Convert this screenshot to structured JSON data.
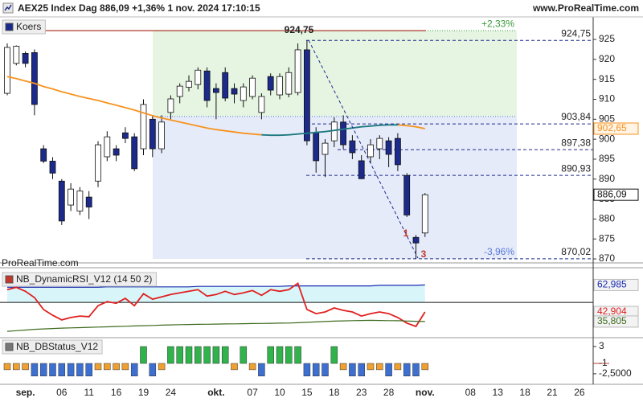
{
  "header": {
    "title": "AEX25 Index Dag 886,09 +1,36% 1 nov. 2024 17:10:15",
    "site": "www.ProRealTime.com"
  },
  "watermark": "ProRealTime.com",
  "chart_data": [
    {
      "type": "candlestick",
      "legend": "Koers",
      "ylim": [
        869,
        930.45
      ],
      "yticks": [
        870,
        875,
        880,
        885,
        890,
        895,
        900,
        905,
        910,
        915,
        920,
        925
      ],
      "up_color": "#ffffff",
      "down_color": "#1c2a8c",
      "open": [
        911.5,
        919,
        921.5,
        921.7,
        897.6,
        894.5,
        889.5,
        883.5,
        882,
        885.5,
        889.5,
        895.6,
        897.6,
        901.6,
        900.6,
        897.6,
        905,
        897.6,
        906.7,
        910.7,
        913,
        913.7,
        917.1,
        912.7,
        916.7,
        912.7,
        909.7,
        910.7,
        906.7,
        915.7,
        911.1,
        911.3,
        911.7,
        922.4,
        901.6,
        896.2,
        899.6,
        904.3,
        899.6,
        894.6,
        895.6,
        897.6,
        899.6,
        900.2,
        890.9,
        875.4,
        876.5
      ],
      "high": [
        924,
        923.5,
        922,
        922.5,
        898.5,
        895.5,
        890,
        889,
        888,
        887,
        899.5,
        902,
        898.5,
        903,
        901.5,
        910,
        906,
        906,
        911,
        914,
        916,
        918,
        918,
        914,
        918,
        914,
        914,
        916,
        911.5,
        916.5,
        916.5,
        918,
        924,
        924.75,
        903,
        900,
        905.5,
        906,
        901,
        896,
        900,
        901,
        900.5,
        901.5,
        891.5,
        876,
        886.5
      ],
      "low": [
        911,
        918.5,
        918,
        906,
        894,
        890,
        878.5,
        882,
        881,
        880,
        888,
        894.5,
        894.5,
        899,
        892,
        896,
        895.5,
        896.5,
        905,
        909,
        912,
        912.5,
        908,
        905,
        909.5,
        909,
        908,
        910,
        905,
        911,
        910,
        910.5,
        911,
        898.5,
        891.6,
        890.5,
        898,
        897.5,
        895,
        890,
        894,
        895,
        893,
        892,
        880.5,
        870.02,
        875.5
      ],
      "close": [
        923,
        923.3,
        919,
        908.7,
        894.5,
        891.5,
        879.5,
        887.5,
        887,
        883,
        898.6,
        900.6,
        896,
        900.2,
        892.6,
        908.7,
        897.6,
        904.3,
        910.1,
        913.3,
        914.5,
        917.3,
        909.7,
        911.7,
        910.3,
        911.3,
        913.1,
        915.3,
        910.7,
        912.3,
        915.7,
        916.7,
        922.4,
        899.6,
        894.6,
        899,
        904.3,
        898.6,
        896.6,
        890.1,
        898.6,
        900.2,
        896.2,
        893.6,
        881,
        874,
        886.09
      ],
      "last_label": "886,09",
      "lines": [
        {
          "color": "#f7931e",
          "values": [
            915.7,
            915.2,
            914.6,
            914.0,
            913.2,
            912.6,
            911.9,
            911.3,
            910.7,
            910.2,
            909.7,
            909.1,
            908.5,
            907.9,
            907.3,
            906.6,
            905.9,
            905.3,
            904.8,
            904.3,
            903.8,
            903.3,
            902.8,
            902.4,
            902.1,
            901.8,
            901.5,
            901.3,
            901.1,
            null,
            null,
            null,
            null,
            null,
            null,
            null,
            null,
            null,
            null,
            null,
            null,
            null,
            null,
            903.6,
            903.4,
            903.1,
            902.65
          ],
          "last_label": "902,65"
        },
        {
          "color": "#1f7a80",
          "values": [
            null,
            null,
            null,
            null,
            null,
            null,
            null,
            null,
            null,
            null,
            null,
            null,
            null,
            null,
            null,
            null,
            null,
            null,
            null,
            null,
            null,
            null,
            null,
            null,
            null,
            null,
            null,
            null,
            901.1,
            901.0,
            901.0,
            901.1,
            901.3,
            901.5,
            901.7,
            901.9,
            902.2,
            902.5,
            902.8,
            903.1,
            903.3,
            903.5,
            903.6,
            903.6,
            null,
            null,
            null
          ]
        }
      ],
      "levels": [
        {
          "value": 924.75,
          "label": "924,75"
        },
        {
          "value": 903.84,
          "label": "903,84"
        },
        {
          "value": 897.38,
          "label": "897,38"
        },
        {
          "value": 890.93,
          "label": "890,93"
        },
        {
          "value": 870.02,
          "label": "870,02"
        }
      ],
      "hline": {
        "value": 927.2,
        "color": "#b03a2e"
      },
      "zones": [
        {
          "from": 905.7,
          "to": 927.2,
          "color": "#e5f5e2",
          "label": "+2,33%",
          "label_color": "#3a9a3a"
        },
        {
          "from": 870,
          "to": 905.7,
          "color": "#e6ebfa",
          "label": "-3,96%",
          "label_color": "#5a78d8"
        }
      ],
      "markers": [
        "1",
        "3"
      ]
    },
    {
      "type": "line",
      "legend": "NB_DynamicRSI_V12 (14 50 2)",
      "ylim": [
        25,
        74
      ],
      "level": 50,
      "band_color": "#d8f6fa",
      "series": [
        {
          "color": "#1a2bb0",
          "values": [
            61.3,
            61.3,
            61.3,
            61.3,
            61.3,
            61.3,
            61.3,
            61.3,
            61.3,
            61.3,
            61.3,
            61.6,
            61.6,
            61.6,
            61.6,
            61.6,
            61.6,
            61.6,
            61.6,
            61.6,
            61.6,
            61.9,
            61.9,
            61.9,
            61.9,
            61.9,
            61.9,
            61.9,
            61.9,
            61.9,
            61.9,
            62.3,
            62.3,
            62.3,
            62.3,
            62.3,
            62.3,
            62.3,
            62.3,
            62.3,
            62.3,
            62.7,
            62.7,
            62.7,
            62.7,
            62.7,
            62.985
          ],
          "last_label": "62,985"
        },
        {
          "color": "#e02020",
          "values": [
            59.5,
            61.2,
            58.3,
            53.6,
            44.7,
            40.5,
            37.0,
            38.8,
            39.9,
            39.4,
            47.6,
            50.6,
            49.4,
            53.0,
            47.6,
            56.5,
            52.4,
            54.1,
            55.9,
            57.1,
            58.3,
            59.5,
            54.7,
            55.9,
            58.3,
            55.9,
            57.1,
            58.9,
            55.3,
            59.5,
            58.3,
            59.5,
            64.2,
            44.7,
            41.7,
            42.9,
            45.9,
            44.1,
            42.9,
            39.9,
            41.7,
            42.9,
            41.7,
            38.8,
            34.6,
            32.2,
            42.904
          ],
          "last_label": "42,904"
        },
        {
          "color": "#3d6b1e",
          "values": [
            28.5,
            29,
            29.5,
            30,
            30.3,
            30.6,
            30.9,
            31.1,
            31.3,
            31.5,
            31.7,
            31.9,
            32.1,
            32.3,
            32.5,
            32.7,
            32.9,
            33.1,
            33.3,
            33.5,
            33.6,
            33.7,
            33.8,
            33.9,
            34.0,
            34.1,
            34.2,
            34.3,
            34.4,
            34.5,
            34.6,
            34.7,
            34.9,
            35.2,
            35.5,
            35.8,
            36.1,
            36.3,
            36.5,
            36.6,
            36.7,
            36.6,
            36.5,
            36.4,
            36.2,
            36.0,
            35.805
          ],
          "last_label": "35,805"
        }
      ]
    },
    {
      "type": "bar",
      "legend": "NB_DBStatus_V12",
      "ylim": [
        -5.95,
        5.1
      ],
      "yticks": [
        3,
        {
          "value": -2.5,
          "label": "-2,5000"
        }
      ],
      "base": -1,
      "categories": [
        null,
        null,
        "sep.",
        null,
        null,
        null,
        "06",
        null,
        null,
        "11",
        null,
        null,
        "16",
        null,
        null,
        "19",
        null,
        null,
        "24",
        null,
        null,
        null,
        null,
        "okt.",
        null,
        null,
        null,
        "07",
        null,
        null,
        "10",
        null,
        null,
        "15",
        null,
        null,
        "18",
        null,
        null,
        "23",
        null,
        null,
        "28",
        null,
        null,
        null,
        "nov.",
        null,
        null,
        null,
        null,
        "08",
        null,
        null,
        "13",
        null,
        null,
        "18",
        null,
        null,
        "21",
        null,
        null,
        "26",
        null
      ],
      "values": [
        -2.5,
        -2.5,
        -2.5,
        -4,
        -4,
        -4,
        -4,
        -4,
        -4,
        -4,
        -2.5,
        -2.5,
        -2.5,
        -2.5,
        -4,
        3,
        -4,
        -2.5,
        3,
        3,
        3,
        3,
        3,
        3,
        3,
        -2.5,
        3,
        -2.5,
        -4,
        3,
        3,
        3,
        3,
        -4,
        -4,
        -4,
        3,
        -2.5,
        -4,
        -4,
        -2.5,
        -2.5,
        -4,
        -2.5,
        -4,
        -4,
        -2.5,
        null,
        null,
        null,
        null,
        null,
        null,
        null,
        null,
        null,
        null,
        null,
        null,
        null,
        null,
        null,
        null,
        null,
        null
      ],
      "bar_colors": [
        "#f0a030",
        "#f0a030",
        "#f0a030",
        "#3d6fd0",
        "#3d6fd0",
        "#3d6fd0",
        "#3d6fd0",
        "#3d6fd0",
        "#3d6fd0",
        "#3d6fd0",
        "#f0a030",
        "#f0a030",
        "#f0a030",
        "#f0a030",
        "#3d6fd0",
        "#2fb34a",
        "#3d6fd0",
        "#f0a030",
        "#2fb34a",
        "#2fb34a",
        "#2fb34a",
        "#2fb34a",
        "#2fb34a",
        "#2fb34a",
        "#2fb34a",
        "#f0a030",
        "#2fb34a",
        "#f0a030",
        "#3d6fd0",
        "#2fb34a",
        "#2fb34a",
        "#2fb34a",
        "#2fb34a",
        "#3d6fd0",
        "#3d6fd0",
        "#3d6fd0",
        "#2fb34a",
        "#f0a030",
        "#3d6fd0",
        "#3d6fd0",
        "#f0a030",
        "#f0a030",
        "#3d6fd0",
        "#f0a030",
        "#3d6fd0",
        "#3d6fd0",
        "#f0a030",
        null,
        null,
        null,
        null,
        null,
        null,
        null,
        null,
        null,
        null,
        null,
        null,
        null,
        null,
        null,
        null,
        null,
        null
      ]
    }
  ]
}
